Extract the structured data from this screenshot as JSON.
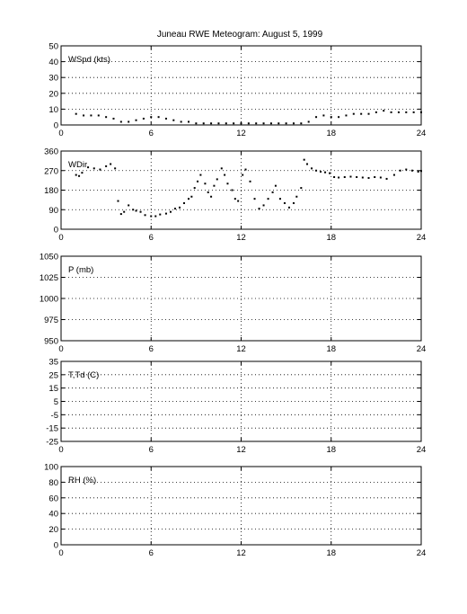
{
  "title": "Juneau RWE Meteogram:     August  5, 1999",
  "chart_data": [
    {
      "type": "scatter",
      "label": "WSpd (kts)",
      "xlim": [
        0,
        24
      ],
      "xticks": [
        "0",
        "6",
        "12",
        "18",
        "24"
      ],
      "ylim": [
        0,
        50
      ],
      "yticks": [
        "0",
        "10",
        "20",
        "30",
        "40",
        "50"
      ],
      "grid": true,
      "series": [
        {
          "x": [
            1.0,
            1.5,
            2.0,
            2.5,
            3.0,
            3.5,
            4.0,
            4.5,
            5.0,
            5.5,
            6.0,
            6.5,
            7.0,
            7.5,
            8.0,
            8.5,
            9.0,
            9.5,
            10.0,
            10.5,
            11.0,
            11.5,
            12.0,
            12.5,
            13.0,
            13.5,
            14.0,
            14.5,
            15.0,
            15.5,
            16.0,
            16.5,
            17.0,
            17.5,
            18.0,
            18.5,
            19.0,
            19.5,
            20.0,
            20.5,
            21.0,
            21.5,
            22.0,
            22.5,
            23.0,
            23.5,
            24.0
          ],
          "y": [
            7,
            6,
            6,
            6,
            5,
            4,
            2,
            2,
            3,
            4,
            5,
            5,
            4,
            3,
            2,
            2,
            1,
            1,
            1,
            1,
            1,
            1,
            1,
            1,
            1,
            1,
            1,
            1,
            1,
            1,
            1,
            2,
            5,
            6,
            5,
            5,
            6,
            7,
            7,
            7,
            8,
            9,
            8,
            8,
            8,
            8,
            8
          ]
        }
      ]
    },
    {
      "type": "scatter",
      "label": "WDir",
      "xlim": [
        0,
        24
      ],
      "xticks": [
        "0",
        "6",
        "12",
        "18",
        "24"
      ],
      "ylim": [
        0,
        360
      ],
      "yticks": [
        "0",
        "90",
        "180",
        "270",
        "360"
      ],
      "grid": true,
      "series": [
        {
          "x": [
            1.0,
            1.2,
            1.4,
            1.8,
            2.2,
            2.6,
            3.0,
            3.3,
            3.6,
            3.8,
            4.0,
            4.2,
            4.5,
            4.8,
            5.0,
            5.3,
            5.6,
            6.0,
            6.3,
            6.6,
            7.0,
            7.3,
            7.6,
            7.9,
            8.2,
            8.5,
            8.7,
            8.9,
            9.1,
            9.3,
            9.6,
            9.8,
            10.0,
            10.2,
            10.4,
            10.7,
            10.9,
            11.1,
            11.4,
            11.6,
            11.8,
            12.1,
            12.3,
            12.6,
            12.9,
            13.2,
            13.5,
            13.8,
            14.1,
            14.3,
            14.6,
            14.9,
            15.2,
            15.5,
            15.7,
            16.0,
            16.2,
            16.4,
            16.7,
            17.0,
            17.3,
            17.6,
            17.9,
            18.2,
            18.5,
            18.9,
            19.3,
            19.7,
            20.1,
            20.5,
            20.9,
            21.3,
            21.7,
            22.2,
            22.6,
            23.0,
            23.4,
            23.8,
            24.0
          ],
          "y": [
            250,
            245,
            260,
            285,
            280,
            275,
            290,
            300,
            280,
            130,
            70,
            80,
            110,
            90,
            85,
            80,
            65,
            60,
            60,
            68,
            72,
            80,
            95,
            100,
            120,
            140,
            150,
            190,
            220,
            250,
            210,
            170,
            150,
            200,
            230,
            280,
            250,
            210,
            180,
            140,
            130,
            250,
            275,
            220,
            140,
            95,
            110,
            140,
            170,
            200,
            140,
            120,
            100,
            120,
            150,
            190,
            320,
            300,
            280,
            270,
            265,
            262,
            258,
            240,
            238,
            240,
            242,
            240,
            238,
            236,
            240,
            238,
            232,
            250,
            270,
            275,
            270,
            265,
            268
          ]
        }
      ]
    },
    {
      "type": "scatter",
      "label": "P (mb)",
      "xlim": [
        0,
        24
      ],
      "xticks": [
        "0",
        "6",
        "12",
        "18",
        "24"
      ],
      "ylim": [
        950,
        1050
      ],
      "yticks": [
        "950",
        "975",
        "1000",
        "1025",
        "1050"
      ],
      "grid": true,
      "series": []
    },
    {
      "type": "scatter",
      "label": "T,Td (C)",
      "xlim": [
        0,
        24
      ],
      "xticks": [
        "0",
        "6",
        "12",
        "18",
        "24"
      ],
      "ylim": [
        -25,
        35
      ],
      "yticks": [
        "-25",
        "-15",
        "-5",
        "5",
        "15",
        "25",
        "35"
      ],
      "grid": true,
      "series": []
    },
    {
      "type": "scatter",
      "label": "RH (%)",
      "xlim": [
        0,
        24
      ],
      "xticks": [
        "0",
        "6",
        "12",
        "18",
        "24"
      ],
      "ylim": [
        0,
        100
      ],
      "yticks": [
        "0",
        "20",
        "40",
        "60",
        "80",
        "100"
      ],
      "grid": true,
      "series": []
    }
  ]
}
